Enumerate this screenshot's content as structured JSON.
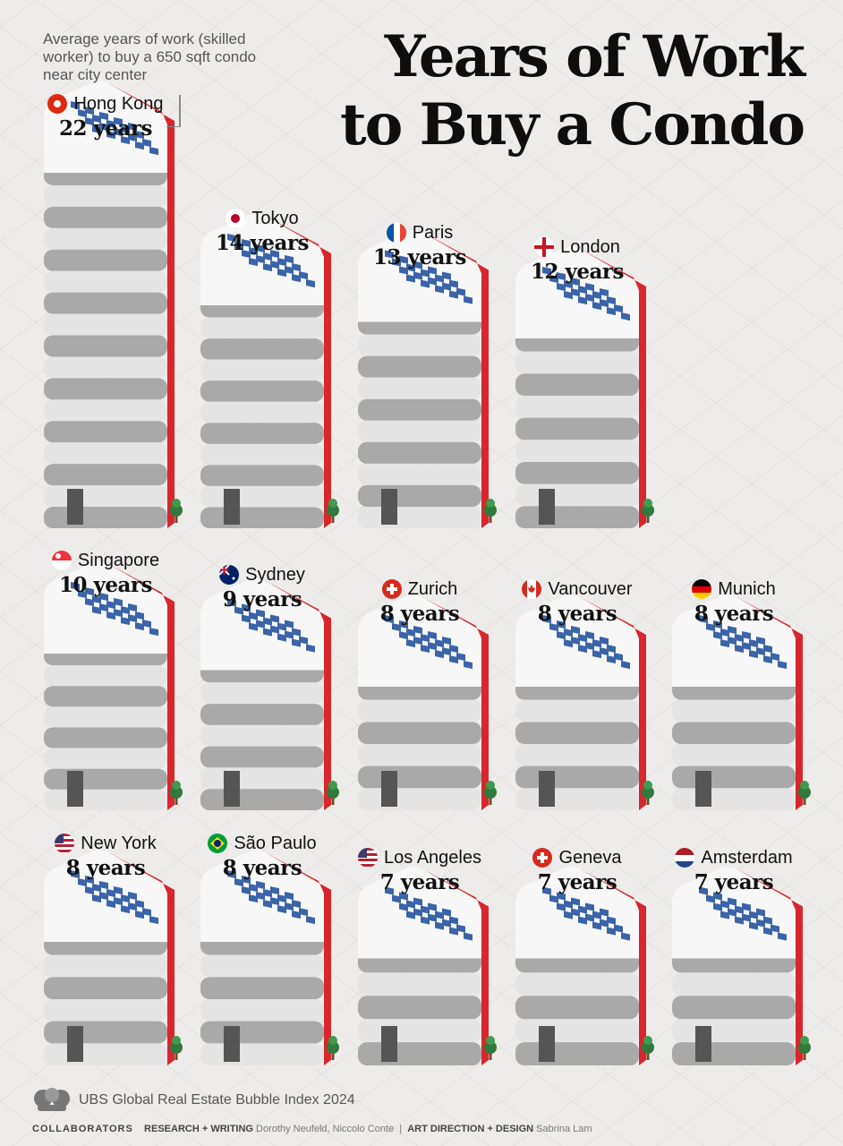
{
  "title_lines": [
    "Years of Work",
    "to Buy a Condo"
  ],
  "subtitle": "Average years of work (skilled worker) to buy a 650 sqft condo near city center",
  "source": "UBS Global Real Estate Bubble Index 2024",
  "credits": {
    "brand": "COLLABORATORS",
    "research_label": "RESEARCH + WRITING",
    "research_names": "Dorothy Neufeld, Niccolo Conte",
    "design_label": "ART DIRECTION + DESIGN",
    "design_names": "Sabrina Lam"
  },
  "colors": {
    "accent": "#d9262c",
    "background": "#eeeceb",
    "window": "#3b63a8",
    "building_light": "#e4e4e4",
    "building_dark": "#a9a9a9",
    "tree": "#2f7a3c"
  },
  "chart_data": {
    "type": "bar",
    "unit": "years",
    "categories": [
      "Hong Kong",
      "Tokyo",
      "Paris",
      "London",
      "Singapore",
      "Sydney",
      "Zurich",
      "Vancouver",
      "Munich",
      "New York",
      "São Paulo",
      "Los Angeles",
      "Geneva",
      "Amsterdam"
    ],
    "values": [
      22,
      14,
      13,
      12,
      10,
      9,
      8,
      8,
      8,
      8,
      8,
      7,
      7,
      7
    ],
    "value_labels": [
      "22 years",
      "14 years",
      "13 years",
      "12 years",
      "10 years",
      "9 years",
      "8 years",
      "8 years",
      "8 years",
      "8 years",
      "8 years",
      "7 years",
      "7 years",
      "7 years"
    ],
    "flags": [
      "hong-kong-flag",
      "japan-flag",
      "france-flag",
      "england-flag",
      "singapore-flag",
      "australia-flag",
      "switzerland-flag",
      "canada-flag",
      "germany-flag",
      "usa-flag",
      "brazil-flag",
      "usa-flag",
      "switzerland-flag",
      "netherlands-flag"
    ]
  }
}
